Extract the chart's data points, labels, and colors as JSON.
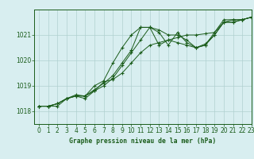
{
  "title": "Graphe pression niveau de la mer (hPa)",
  "background_color": "#d8eef0",
  "grid_color": "#b0d0d0",
  "line_color": "#1a5c1a",
  "xlim": [
    -0.5,
    23
  ],
  "ylim": [
    1017.5,
    1022.0
  ],
  "yticks": [
    1018,
    1019,
    1020,
    1021
  ],
  "xticks": [
    0,
    1,
    2,
    3,
    4,
    5,
    6,
    7,
    8,
    9,
    10,
    11,
    12,
    13,
    14,
    15,
    16,
    17,
    18,
    19,
    20,
    21,
    22,
    23
  ],
  "series": [
    [
      1018.2,
      1018.2,
      1018.2,
      1018.5,
      1018.6,
      1018.6,
      1019.0,
      1019.2,
      1019.9,
      1020.5,
      1021.0,
      1021.3,
      1021.3,
      1021.1,
      1020.6,
      1021.1,
      1020.7,
      1020.5,
      1020.6,
      1021.1,
      1021.6,
      1021.6,
      1021.6,
      1021.7
    ],
    [
      1018.2,
      1018.2,
      1018.3,
      1018.5,
      1018.6,
      1018.6,
      1018.8,
      1019.15,
      1019.25,
      1019.5,
      1019.9,
      1020.3,
      1020.6,
      1020.7,
      1020.8,
      1020.9,
      1021.0,
      1021.0,
      1021.05,
      1021.1,
      1021.5,
      1021.6,
      1021.6,
      1021.7
    ],
    [
      1018.2,
      1018.2,
      1018.3,
      1018.5,
      1018.6,
      1018.5,
      1018.8,
      1019.0,
      1019.3,
      1019.8,
      1020.3,
      1020.8,
      1021.3,
      1020.6,
      1020.8,
      1020.7,
      1020.6,
      1020.5,
      1020.6,
      1021.0,
      1021.5,
      1021.5,
      1021.6,
      1021.7
    ],
    [
      1018.2,
      1018.2,
      1018.3,
      1018.5,
      1018.65,
      1018.6,
      1018.85,
      1019.1,
      1019.4,
      1019.9,
      1020.4,
      1021.3,
      1021.3,
      1021.2,
      1021.0,
      1021.0,
      1020.8,
      1020.5,
      1020.65,
      1021.0,
      1021.5,
      1021.5,
      1021.6,
      1021.7
    ]
  ]
}
